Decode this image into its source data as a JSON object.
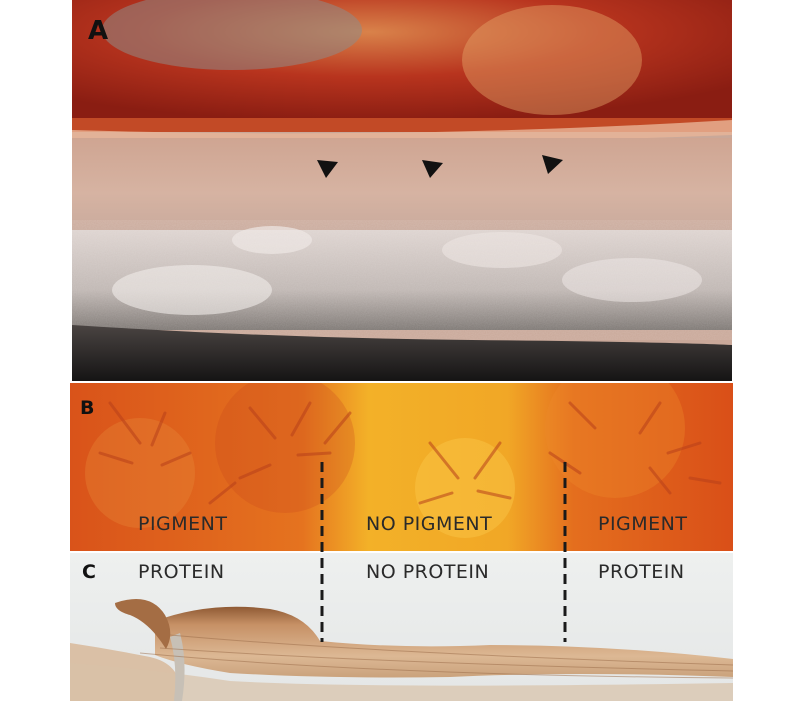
{
  "panels": {
    "a": {
      "letter": "A"
    },
    "b": {
      "letter": "B",
      "labels": [
        "PIGMENT",
        "NO PIGMENT",
        "PIGMENT"
      ]
    },
    "c": {
      "letter": "C",
      "labels": [
        "PROTEIN",
        "NO PROTEIN",
        "PROTEIN"
      ]
    }
  },
  "colors": {
    "divider": "#1a1a1a",
    "pigment_orange": "#e0621e",
    "no_pigment_yellow": "#f2b22a",
    "tissue_brown": "#b87b4b"
  }
}
